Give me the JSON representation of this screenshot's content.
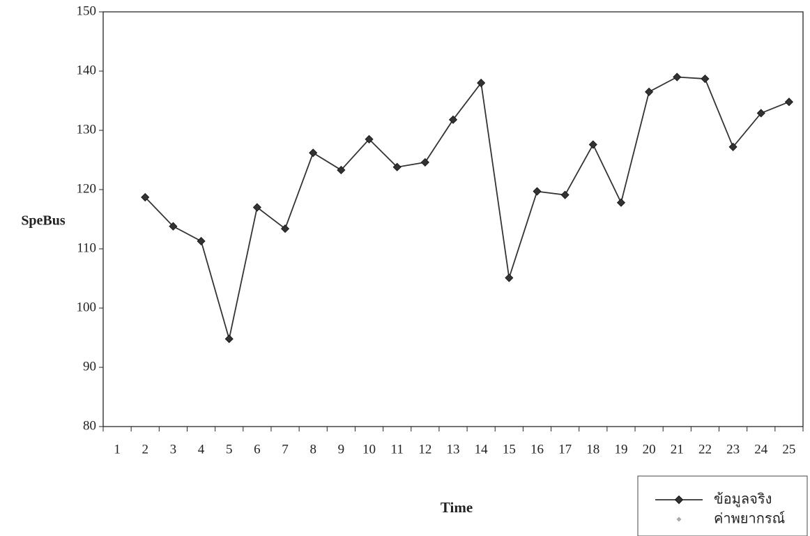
{
  "chart_data": {
    "type": "line",
    "x_label": "Time",
    "y_label": "SpeBus",
    "categories": [
      "1",
      "2",
      "3",
      "4",
      "5",
      "6",
      "7",
      "8",
      "9",
      "10",
      "11",
      "12",
      "13",
      "14",
      "15",
      "16",
      "17",
      "18",
      "19",
      "20",
      "21",
      "22",
      "23",
      "24",
      "25"
    ],
    "series": [
      {
        "name": "ข้อมูลจริง",
        "color": "#333333",
        "values": [
          null,
          118.7,
          113.8,
          111.3,
          94.8,
          117.0,
          113.4,
          126.2,
          123.3,
          128.5,
          123.8,
          124.6,
          131.8,
          138.0,
          105.1,
          119.7,
          119.1,
          127.6,
          117.8,
          136.5,
          139.0,
          138.7,
          127.2,
          132.9,
          134.8
        ]
      },
      {
        "name": "ค่าพยากรณ์",
        "color": "#aaaaaa",
        "values": [
          null,
          null,
          null,
          null,
          null,
          null,
          null,
          null,
          null,
          null,
          null,
          null,
          null,
          null,
          null,
          null,
          null,
          null,
          null,
          null,
          null,
          null,
          null,
          null,
          null
        ]
      }
    ],
    "ylim": [
      80,
      150
    ],
    "yticks": [
      80,
      90,
      100,
      110,
      120,
      130,
      140,
      150
    ]
  }
}
